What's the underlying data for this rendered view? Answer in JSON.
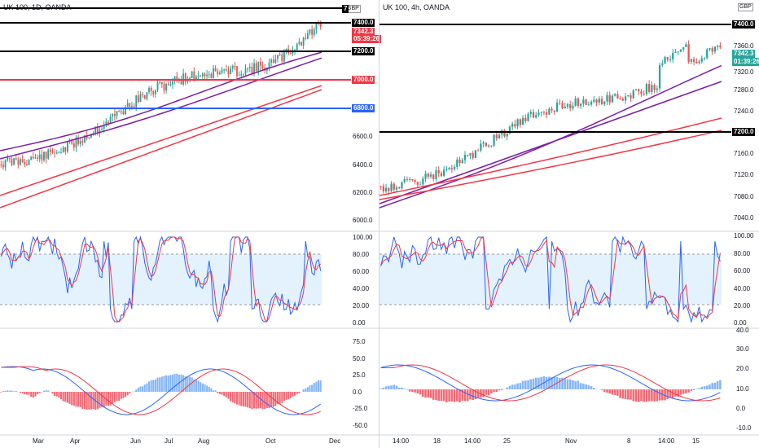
{
  "left": {
    "title": "UK 100, 1D, OANDA",
    "currency": "GBP",
    "price_ticks": [
      "7400.0",
      "7200.0",
      "7000.0",
      "6800.0",
      "6600.0",
      "6400.0",
      "6200.0",
      "6000.0"
    ],
    "top_tick": "7",
    "last_price": "7342.3",
    "countdown": "05:39:26",
    "stoch_ticks": [
      "100.00",
      "80.00",
      "60.00",
      "40.00",
      "20.00",
      "0.00"
    ],
    "macd_ticks": [
      "75.0",
      "50.0",
      "25.0",
      "0.0",
      "-25.0",
      "-50.0"
    ],
    "time_labels": [
      "Mar",
      "Apr",
      "Jun",
      "Jul",
      "Aug",
      "Oct",
      "Dec"
    ],
    "levels": [
      {
        "label": "7400.0",
        "color": "#000000"
      },
      {
        "label": "7200.0",
        "color": "#000000"
      },
      {
        "label": "7000.0",
        "color": "#f23645"
      },
      {
        "label": "6800.0",
        "color": "#2962ff"
      }
    ]
  },
  "right": {
    "title": "UK 100, 4h, OANDA",
    "currency": "GBP",
    "price_ticks": [
      "7400.0",
      "7360.0",
      "7320.0",
      "7280.0",
      "7240.0",
      "7200.0",
      "7160.0",
      "7120.0",
      "7080.0",
      "7040.0"
    ],
    "last_price": "7342.3",
    "countdown": "01:39:26",
    "stoch_ticks": [
      "100.00",
      "80.00",
      "60.00",
      "40.00",
      "20.00",
      "0.00"
    ],
    "macd_ticks": [
      "40.0",
      "30.0",
      "20.0",
      "10.0",
      "0.0",
      "-10.0"
    ],
    "time_labels": [
      "14:00",
      "18",
      "14:00",
      "25",
      "Nov",
      "8",
      "14:00",
      "15"
    ],
    "levels": [
      {
        "label": "7400.0",
        "color": "#000000"
      },
      {
        "label": "7200.0",
        "color": "#000000"
      }
    ]
  },
  "colors": {
    "up": "#26a69a",
    "down": "#ef5350",
    "stoch_k": "#2962ff",
    "stoch_d": "#f23645",
    "ma_purple": "#7b1fa2",
    "ma_red": "#f23645",
    "band": "#e3f2fd"
  }
}
